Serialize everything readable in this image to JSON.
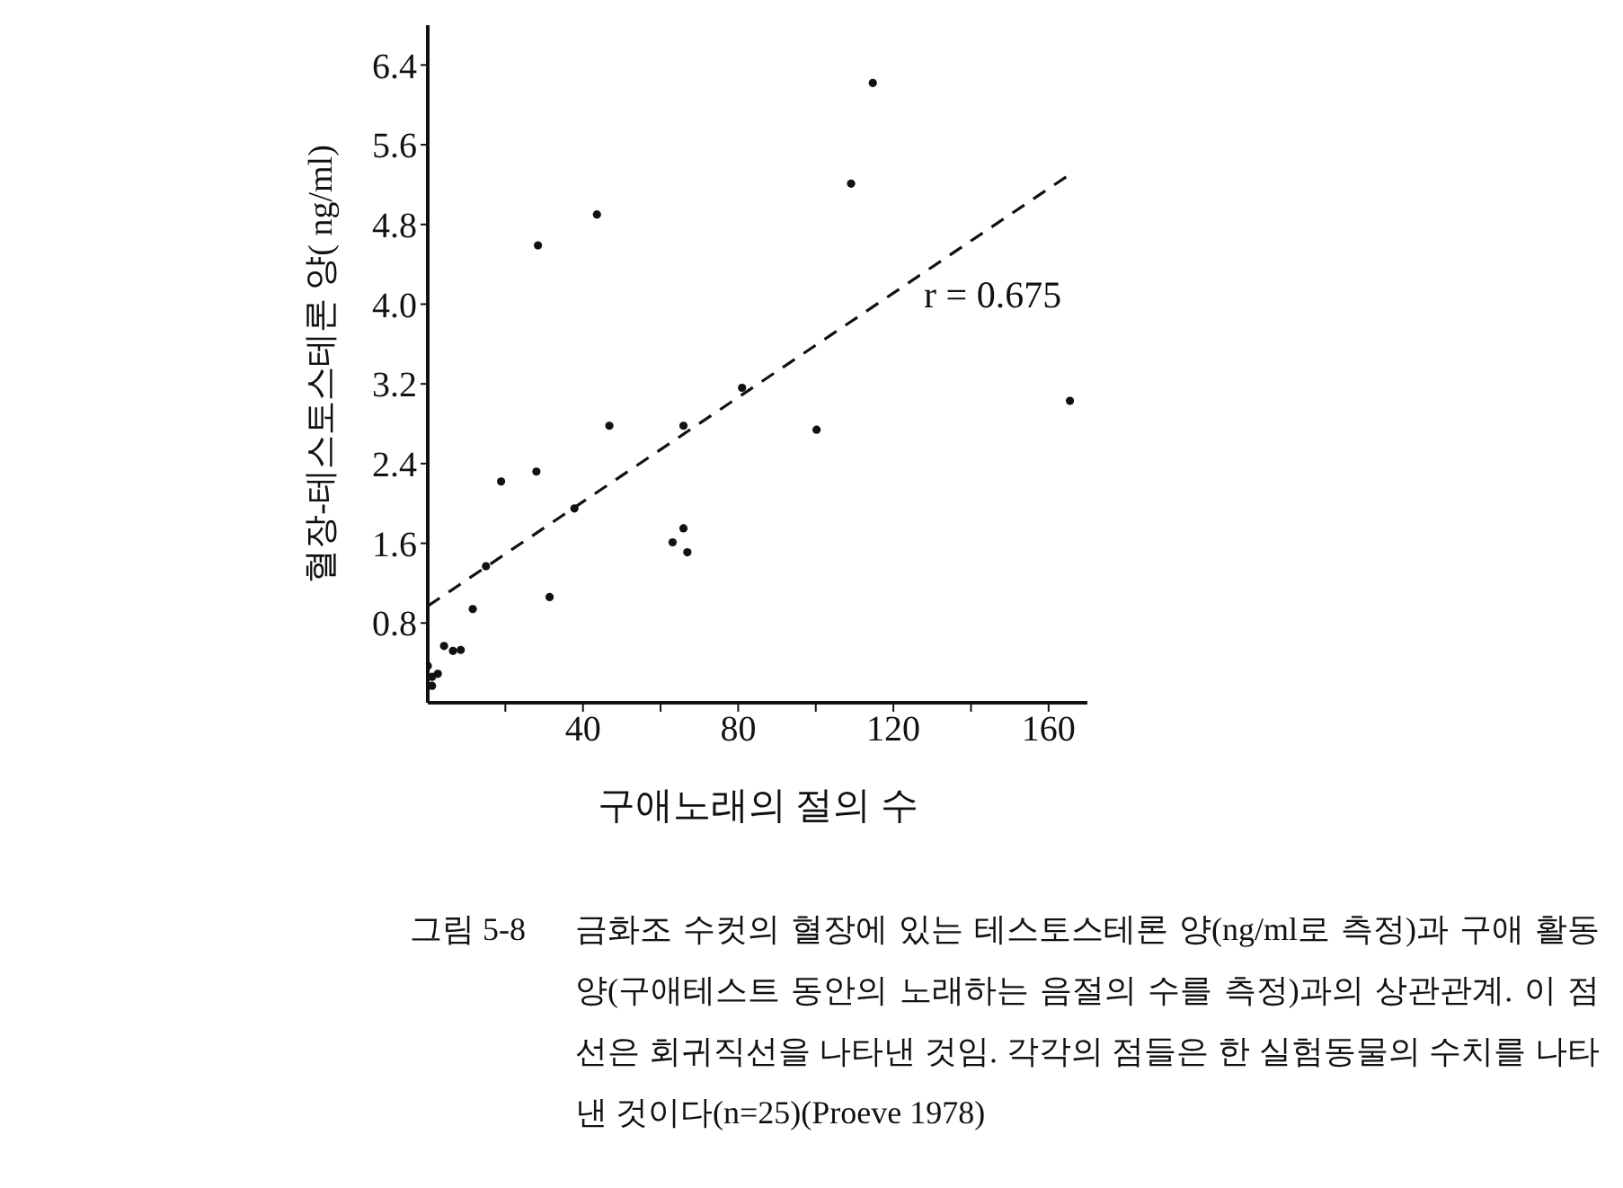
{
  "chart_data": {
    "type": "scatter",
    "xlabel": "구애노래의 절의 수",
    "ylabel": "혈장-테스토스테론 양( ng/ml)",
    "annotations": [
      "r = 0.675",
      "그림 5-8",
      "금화조 수컷의 혈장에 있는 테스토스테론 양(ng/ml로 측정)과 구애 활동양(구애테스트 동안의 노래하는 음절의 수를 측정)과의 상관관계. 이 점선은 회귀직선을 나타낸 것임. 각각의 점들은 한 실험동물의 수치를 나타낸 것이다(n=25)(Proeve 1978)"
    ],
    "xlim": [
      0,
      170
    ],
    "ylim": [
      0,
      6.8
    ],
    "xticks": [
      {
        "value": 20,
        "label": null
      },
      40,
      {
        "value": 60,
        "label": null
      },
      80,
      {
        "value": 100,
        "label": null
      },
      120,
      {
        "value": 140,
        "label": null
      },
      160
    ],
    "yticks": [
      0.8,
      1.6,
      2.4,
      3.2,
      {
        "value": 4,
        "label": "4.0"
      },
      4.8,
      5.6,
      6.4
    ],
    "series": [
      {
        "marker": "circle",
        "color": "#111111",
        "x": [
          0,
          1.1,
          2.6,
          1.1,
          4.2,
          6.5,
          8.5,
          11.6,
          15,
          18.9,
          28,
          31.4,
          37.8,
          46.8,
          28.4,
          43.6,
          63.1,
          65.9,
          66.9,
          65.9,
          81,
          100.2,
          109.1,
          114.7,
          165.5
        ],
        "values": [
          0.37,
          0.26,
          0.29,
          0.17,
          0.57,
          0.52,
          0.53,
          0.94,
          1.37,
          2.22,
          2.32,
          1.06,
          1.95,
          2.78,
          4.59,
          4.9,
          1.61,
          1.75,
          1.51,
          2.78,
          3.16,
          2.74,
          5.21,
          6.22,
          3.03
        ]
      },
      {
        "type": "line",
        "marker": "none",
        "line_style": "dashed",
        "color": "#111111",
        "x": [
          0,
          165
        ],
        "values": [
          0.97,
          5.29
        ]
      }
    ]
  }
}
